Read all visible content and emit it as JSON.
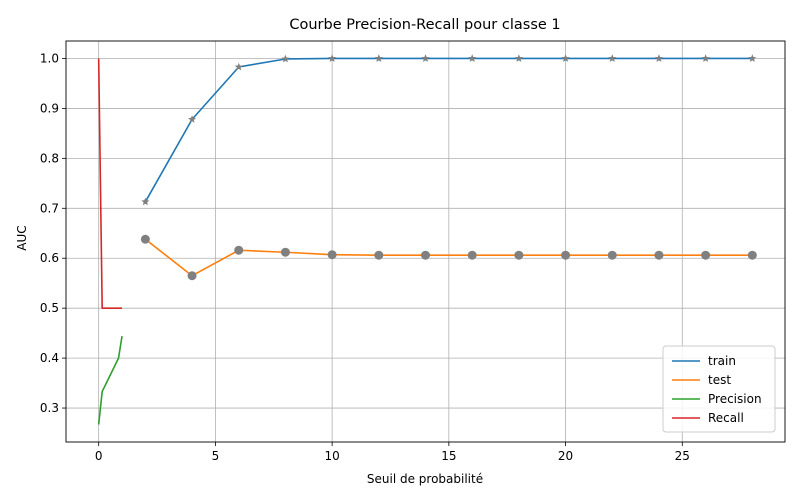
{
  "chart_data": {
    "type": "line",
    "title": "Courbe Precision-Recall pour classe 1",
    "xlabel": "Seuil de probabilité",
    "ylabel": "AUC",
    "xlim": [
      -1.4,
      29.4
    ],
    "ylim": [
      0.232,
      1.035
    ],
    "xticks": [
      0,
      5,
      10,
      15,
      20,
      25
    ],
    "yticks": [
      0.3,
      0.4,
      0.5,
      0.6,
      0.7,
      0.8,
      0.9,
      1.0
    ],
    "xtick_labels": [
      "0",
      "5",
      "10",
      "15",
      "20",
      "25"
    ],
    "ytick_labels": [
      "0.3",
      "0.4",
      "0.5",
      "0.6",
      "0.7",
      "0.8",
      "0.9",
      "1.0"
    ],
    "grid": true,
    "legend_position": "lower-right",
    "series": [
      {
        "name": "train",
        "color": "#1f77b4",
        "marker": "star",
        "marker_color": "#808080",
        "x": [
          2,
          4,
          6,
          8,
          10,
          12,
          14,
          16,
          18,
          20,
          22,
          24,
          26,
          28
        ],
        "y": [
          0.713,
          0.878,
          0.983,
          0.999,
          1.0,
          1.0,
          1.0,
          1.0,
          1.0,
          1.0,
          1.0,
          1.0,
          1.0,
          1.0
        ]
      },
      {
        "name": "test",
        "color": "#ff7f0e",
        "marker": "circle",
        "marker_color": "#808080",
        "x": [
          2,
          4,
          6,
          8,
          10,
          12,
          14,
          16,
          18,
          20,
          22,
          24,
          26,
          28
        ],
        "y": [
          0.638,
          0.565,
          0.616,
          0.612,
          0.607,
          0.606,
          0.606,
          0.606,
          0.606,
          0.606,
          0.606,
          0.606,
          0.606,
          0.606
        ]
      },
      {
        "name": "Precision",
        "color": "#2ca02c",
        "marker": "none",
        "x": [
          0.0,
          0.15,
          0.85,
          1.0
        ],
        "y": [
          0.267,
          0.333,
          0.4,
          0.444
        ]
      },
      {
        "name": "Recall",
        "color": "#d62728",
        "marker": "none",
        "x": [
          0.0,
          0.15,
          0.85,
          1.0
        ],
        "y": [
          1.0,
          0.5,
          0.5,
          0.5
        ]
      }
    ]
  }
}
